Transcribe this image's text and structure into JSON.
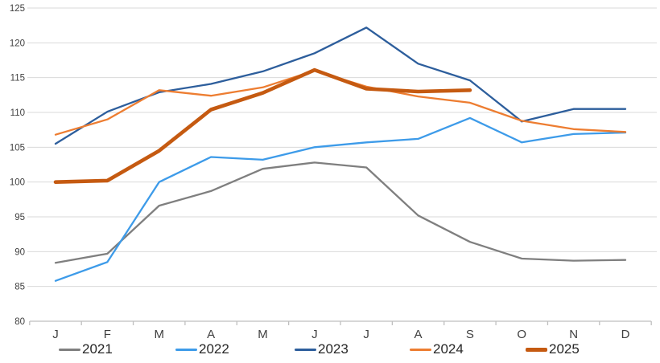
{
  "chart_data": {
    "type": "line",
    "title": "",
    "xlabel": "",
    "ylabel": "",
    "x_categories": [
      "J",
      "F",
      "M",
      "A",
      "M",
      "J",
      "J",
      "A",
      "S",
      "O",
      "N",
      "D"
    ],
    "ylim": [
      80,
      125
    ],
    "y_ticks": [
      80,
      85,
      90,
      95,
      100,
      105,
      110,
      115,
      120,
      125
    ],
    "grid": "horizontal",
    "legend_position": "bottom",
    "series": [
      {
        "name": "2021",
        "color": "#7F7F7F",
        "width": 2.3,
        "values": [
          88.4,
          89.7,
          96.6,
          98.7,
          101.9,
          102.8,
          102.1,
          95.2,
          91.4,
          89.0,
          88.7,
          88.8
        ]
      },
      {
        "name": "2022",
        "color": "#3D9BE9",
        "width": 2.3,
        "values": [
          85.8,
          88.5,
          100.0,
          103.6,
          103.2,
          105.0,
          105.7,
          106.2,
          109.2,
          105.7,
          106.9,
          107.1
        ]
      },
      {
        "name": "2023",
        "color": "#2D5E9C",
        "width": 2.3,
        "values": [
          105.5,
          110.1,
          112.9,
          114.1,
          115.9,
          118.5,
          122.2,
          117.0,
          114.6,
          108.7,
          110.5,
          110.5
        ]
      },
      {
        "name": "2024",
        "color": "#ED7D31",
        "width": 2.3,
        "values": [
          106.8,
          109.0,
          113.2,
          112.4,
          113.6,
          116.0,
          113.7,
          112.3,
          111.4,
          108.8,
          107.6,
          107.2
        ]
      },
      {
        "name": "2025",
        "color": "#C55A11",
        "width": 4.6,
        "values": [
          100.0,
          100.2,
          104.5,
          110.4,
          112.8,
          116.1,
          113.4,
          113.0,
          113.2
        ]
      }
    ]
  },
  "style_colors": {
    "gridline": "#D9D9D9",
    "axis": "#BFBFBF",
    "tick_label": "#404040",
    "legend_text": "#262626",
    "background": "#FFFFFF"
  }
}
